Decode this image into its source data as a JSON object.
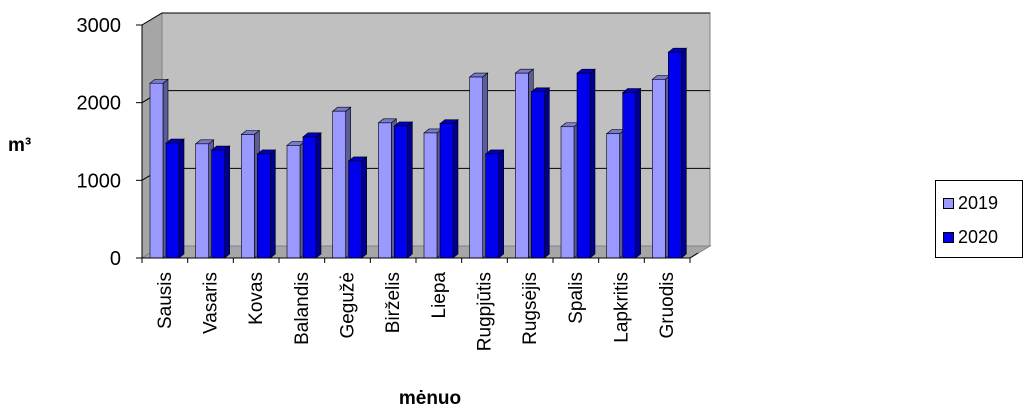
{
  "chart_data": {
    "type": "bar",
    "title": "",
    "xlabel": "mėnuo",
    "ylabel": "m³",
    "ylim": [
      0,
      3000
    ],
    "yticks": [
      "0",
      "1000",
      "2000",
      "3000"
    ],
    "categories": [
      "Sausis",
      "Vasaris",
      "Kovas",
      "Balandis",
      "Gegužė",
      "Birželis",
      "Liepa",
      "Rugpjūtis",
      "Rugsėjis",
      "Spalis",
      "Lapkritis",
      "Gruodis"
    ],
    "series": [
      {
        "name": "2019",
        "color": "#9999ff",
        "values": [
          2250,
          1470,
          1590,
          1450,
          1890,
          1740,
          1610,
          2330,
          2380,
          1690,
          1600,
          2300
        ]
      },
      {
        "name": "2020",
        "color": "#0000ee",
        "values": [
          1480,
          1390,
          1340,
          1560,
          1250,
          1700,
          1730,
          1340,
          2140,
          2380,
          2130,
          2650
        ]
      }
    ],
    "grid": true,
    "legend_position": "right",
    "style": "3d-clustered-bar"
  }
}
